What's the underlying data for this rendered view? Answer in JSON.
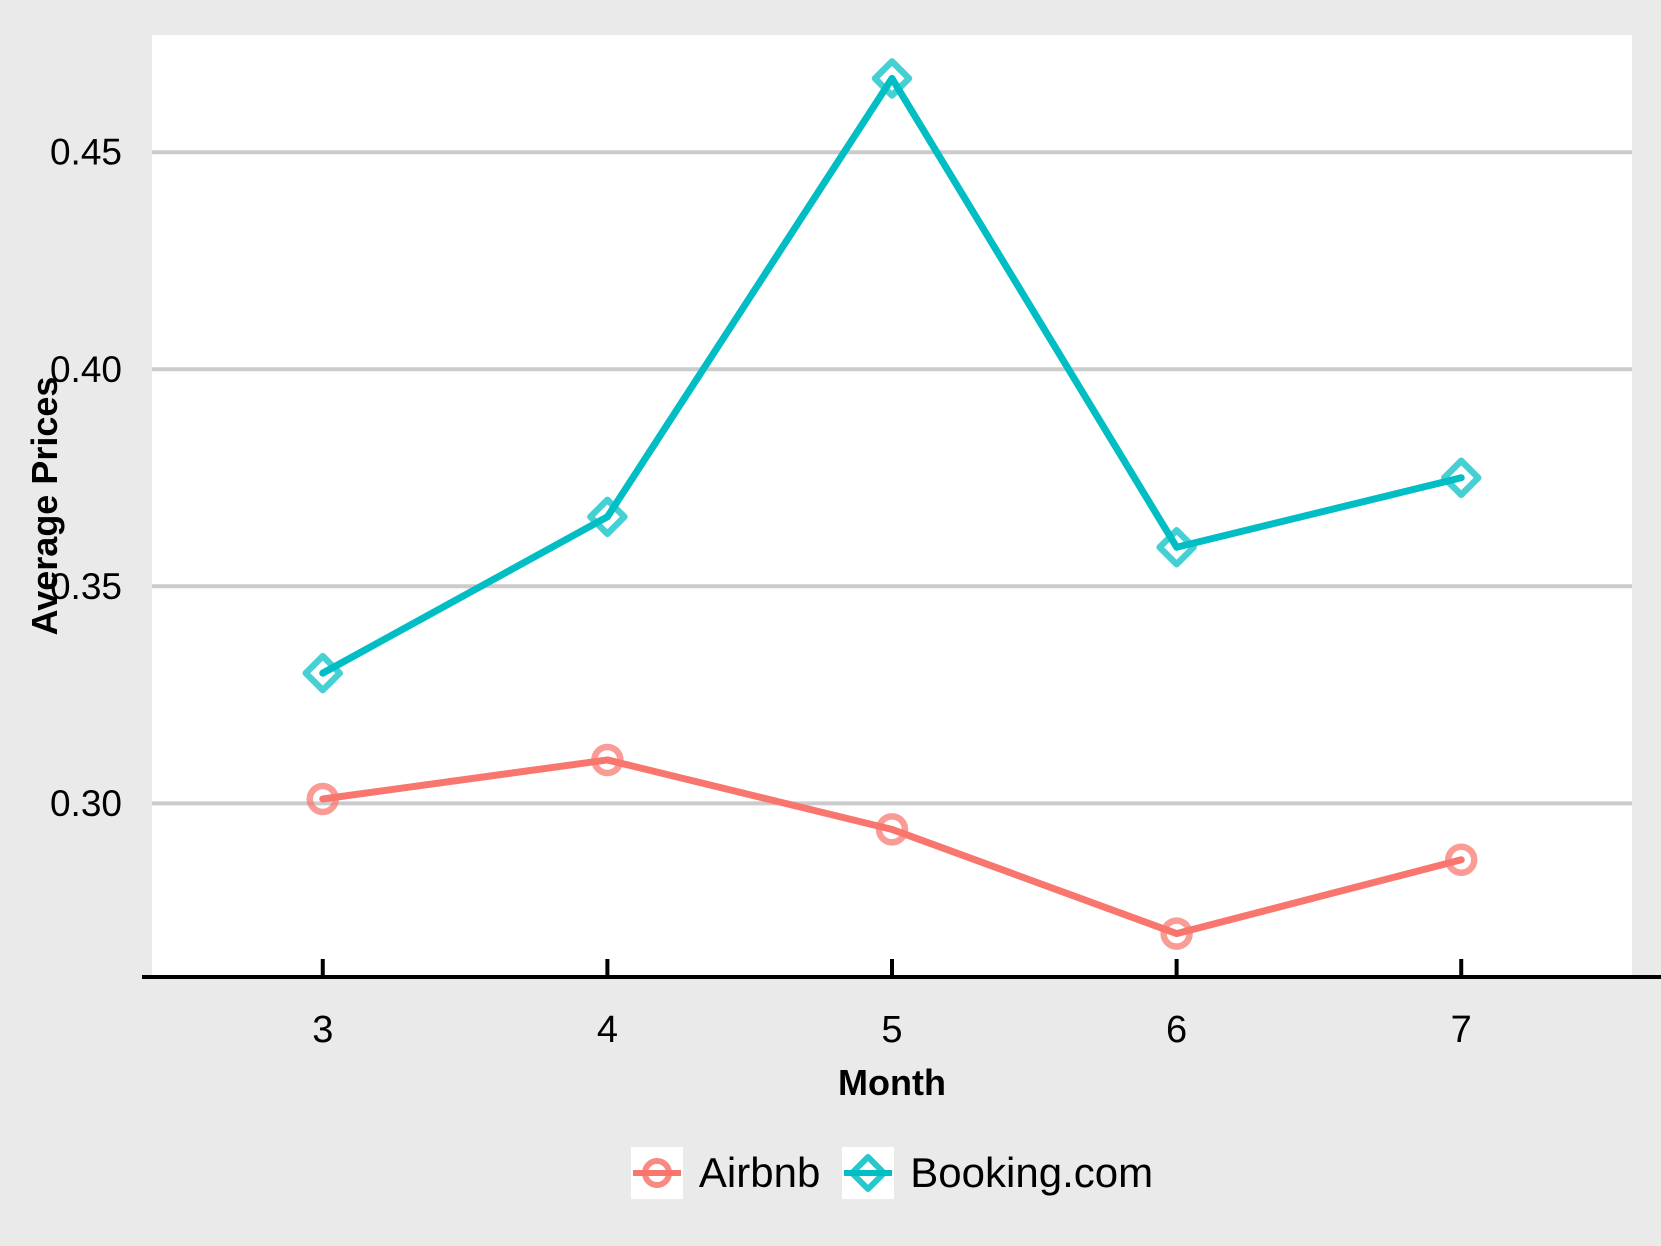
{
  "figure": {
    "background": "#EAEAEA",
    "panel_background": "#FFFFFF",
    "gridline_color": "#CBCBCB",
    "axis_line_color": "#000000",
    "text_color": "#000000"
  },
  "chart_data": {
    "type": "line",
    "title": "",
    "xlabel": "Month",
    "ylabel": "Average Prices",
    "x": [
      3,
      4,
      5,
      6,
      7
    ],
    "x_tick_labels": [
      "3",
      "4",
      "5",
      "6",
      "7"
    ],
    "y_ticks": [
      0.3,
      0.35,
      0.4,
      0.45
    ],
    "y_tick_labels": [
      "0.30",
      "0.35",
      "0.40",
      "0.45"
    ],
    "xlim": [
      2.4,
      7.6
    ],
    "ylim": [
      0.26,
      0.477
    ],
    "grid": "horizontal-only",
    "legend_position": "bottom-center",
    "series": [
      {
        "name": "Airbnb",
        "color": "#F8766D",
        "marker": "circle-marker",
        "values": [
          0.301,
          0.31,
          0.294,
          0.27,
          0.287
        ]
      },
      {
        "name": "Booking.com",
        "color": "#00BEC4",
        "marker": "diamond-marker",
        "values": [
          0.33,
          0.366,
          0.467,
          0.359,
          0.375
        ]
      }
    ]
  }
}
